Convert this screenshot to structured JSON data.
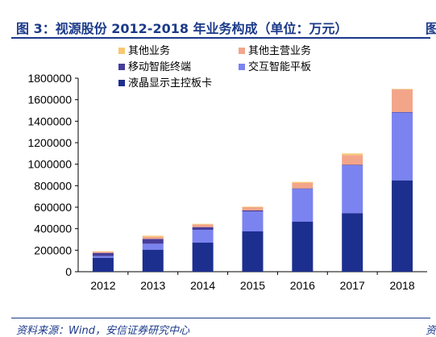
{
  "header": {
    "title": "图 3：视源股份 2012-2018 年业务构成（单位：万元）",
    "next_figure_glyph": "图"
  },
  "footer": {
    "source": "资料来源：Wind，安信证券研究中心",
    "next_source_glyph": "资"
  },
  "chart_data": {
    "type": "bar",
    "stacked": true,
    "categories": [
      "2012",
      "2013",
      "2014",
      "2015",
      "2016",
      "2017",
      "2018"
    ],
    "series": [
      {
        "name": "液晶显示主控板卡",
        "color": "#1c2f8f",
        "values": [
          130000,
          205000,
          270000,
          375000,
          465000,
          545000,
          850000
        ]
      },
      {
        "name": "交互智能平板",
        "color": "#7b83f0",
        "values": [
          15000,
          55000,
          120000,
          185000,
          305000,
          445000,
          630000
        ]
      },
      {
        "name": "移动智能终端",
        "color": "#463d9a",
        "values": [
          30000,
          45000,
          25000,
          10000,
          5000,
          5000,
          5000
        ]
      },
      {
        "name": "其他主营业务",
        "color": "#f3a58a",
        "values": [
          10000,
          20000,
          25000,
          30000,
          50000,
          90000,
          210000
        ]
      },
      {
        "name": "其他业务",
        "color": "#f7c873",
        "values": [
          5000,
          10000,
          5000,
          5000,
          10000,
          15000,
          5000
        ]
      }
    ],
    "legend_order": [
      "其他业务",
      "其他主营业务",
      "移动智能终端",
      "交互智能平板",
      "液晶显示主控板卡"
    ],
    "yticks": [
      "0",
      "200000",
      "400000",
      "600000",
      "800000",
      "1000000",
      "1200000",
      "1400000",
      "1600000",
      "1800000"
    ],
    "ylim": [
      0,
      1800000
    ],
    "legend_position": "top-left",
    "grid": false
  }
}
